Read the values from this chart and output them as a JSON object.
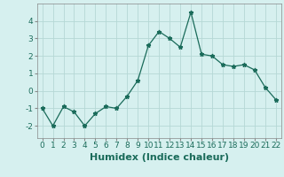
{
  "x": [
    0,
    1,
    2,
    3,
    4,
    5,
    6,
    7,
    8,
    9,
    10,
    11,
    12,
    13,
    14,
    15,
    16,
    17,
    18,
    19,
    20,
    21,
    22
  ],
  "y": [
    -1.0,
    -2.0,
    -0.9,
    -1.2,
    -2.0,
    -1.3,
    -0.9,
    -1.0,
    -0.3,
    0.6,
    2.6,
    3.4,
    3.0,
    2.5,
    4.5,
    2.1,
    2.0,
    1.5,
    1.4,
    1.5,
    1.2,
    0.2,
    -0.5
  ],
  "xlabel": "Humidex (Indice chaleur)",
  "ylim": [
    -2.7,
    5.0
  ],
  "xlim": [
    -0.5,
    22.5
  ],
  "line_color": "#1a6b5a",
  "marker": "*",
  "bg_color": "#d6f0ef",
  "grid_color": "#b5d8d5",
  "tick_label_fontsize": 6.5,
  "xlabel_fontsize": 8,
  "yticks": [
    -2,
    -1,
    0,
    1,
    2,
    3,
    4
  ],
  "xticks": [
    0,
    1,
    2,
    3,
    4,
    5,
    6,
    7,
    8,
    9,
    10,
    11,
    12,
    13,
    14,
    15,
    16,
    17,
    18,
    19,
    20,
    21,
    22
  ]
}
